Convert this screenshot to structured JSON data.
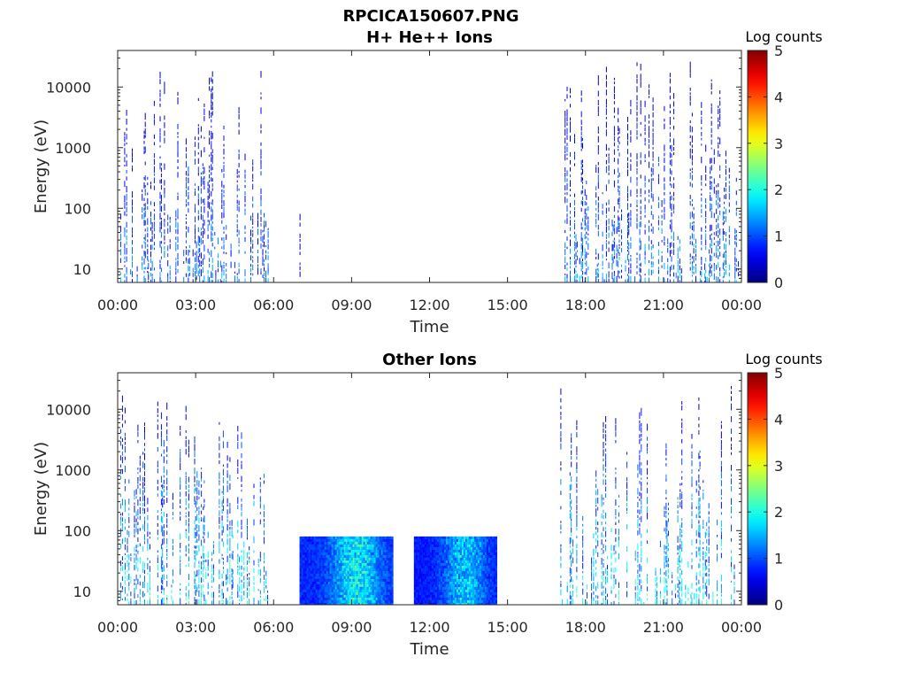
{
  "figure_title": "RPCICA150607.PNG",
  "chart_data": [
    {
      "type": "heatmap",
      "title": "H+ He++ Ions",
      "xlabel": "Time",
      "ylabel": "Energy (eV)",
      "x_ticks": [
        "00:00",
        "03:00",
        "06:00",
        "09:00",
        "12:00",
        "15:00",
        "18:00",
        "21:00",
        "00:00"
      ],
      "x_range_hours": [
        0,
        24
      ],
      "y_scale": "log",
      "y_ticks": [
        "10",
        "100",
        "1000",
        "10000"
      ],
      "y_range": [
        6,
        40000
      ],
      "colorbar": {
        "label": "Log counts",
        "ticks": [
          "0",
          "1",
          "2",
          "3",
          "4",
          "5"
        ],
        "range": [
          0,
          5
        ],
        "colormap": "jet"
      },
      "data_segments": [
        {
          "start_h": 0.1,
          "end_h": 5.8,
          "emin": 6,
          "emax": 20000,
          "peak_log": 1.5,
          "style": "spikes"
        },
        {
          "start_h": 7.0,
          "end_h": 7.1,
          "emin": 6,
          "emax": 80,
          "peak_log": 0.6,
          "style": "spikes"
        },
        {
          "start_h": 17.0,
          "end_h": 23.9,
          "emin": 6,
          "emax": 25000,
          "peak_log": 1.6,
          "style": "spikes"
        }
      ]
    },
    {
      "type": "heatmap",
      "title": "Other Ions",
      "xlabel": "Time",
      "ylabel": "Energy (eV)",
      "x_ticks": [
        "00:00",
        "03:00",
        "06:00",
        "09:00",
        "12:00",
        "15:00",
        "18:00",
        "21:00",
        "00:00"
      ],
      "x_range_hours": [
        0,
        24
      ],
      "y_scale": "log",
      "y_ticks": [
        "10",
        "100",
        "1000",
        "10000"
      ],
      "y_range": [
        6,
        40000
      ],
      "colorbar": {
        "label": "Log counts",
        "ticks": [
          "0",
          "1",
          "2",
          "3",
          "4",
          "5"
        ],
        "range": [
          0,
          5
        ],
        "colormap": "jet"
      },
      "data_segments": [
        {
          "start_h": 0.1,
          "end_h": 5.8,
          "emin": 6,
          "emax": 20000,
          "peak_log": 2.2,
          "style": "spikes"
        },
        {
          "start_h": 7.0,
          "end_h": 10.6,
          "emin": 6,
          "emax": 80,
          "peak_log": 2.4,
          "style": "block"
        },
        {
          "start_h": 11.4,
          "end_h": 14.6,
          "emin": 6,
          "emax": 80,
          "peak_log": 2.1,
          "style": "block"
        },
        {
          "start_h": 17.0,
          "end_h": 23.9,
          "emin": 6,
          "emax": 25000,
          "peak_log": 2.2,
          "style": "spikes"
        }
      ]
    }
  ]
}
